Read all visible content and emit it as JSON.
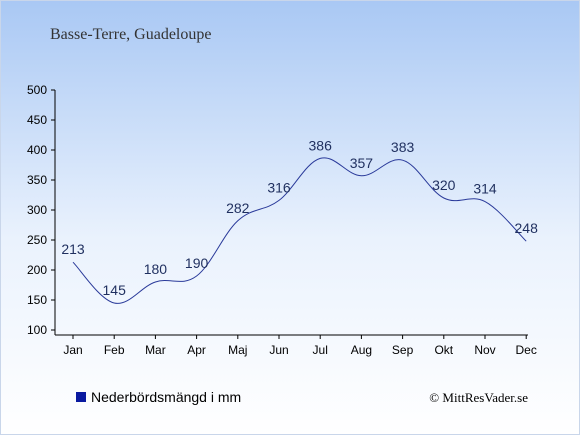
{
  "chart_data": {
    "type": "line",
    "title": "Basse-Terre, Guadeloupe",
    "categories": [
      "Jan",
      "Feb",
      "Mar",
      "Apr",
      "Maj",
      "Jun",
      "Jul",
      "Aug",
      "Sep",
      "Okt",
      "Nov",
      "Dec"
    ],
    "series": [
      {
        "name": "Nederbördsmängd i mm",
        "values": [
          213,
          145,
          180,
          190,
          282,
          316,
          386,
          357,
          383,
          320,
          314,
          248
        ]
      }
    ],
    "yticks": [
      "500",
      "450",
      "400",
      "350",
      "300",
      "250",
      "200",
      "150",
      "100"
    ],
    "ylim": [
      100,
      500
    ],
    "grid": false,
    "legend_position": "bottom-left",
    "line_color": "#2a3a9a",
    "legend_marker_color": "#0a1aa0"
  },
  "credit": "© MittResVader.se"
}
